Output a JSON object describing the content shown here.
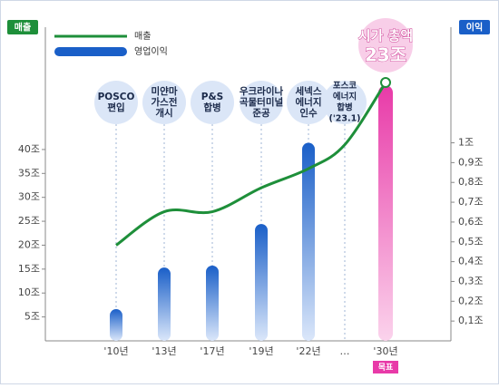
{
  "chart_data": {
    "type": "combo",
    "left_axis_title": "매출",
    "right_axis_title": "이익",
    "categories": [
      "'10년",
      "'13년",
      "'17년",
      "'19년",
      "'22년",
      "…",
      "'30년"
    ],
    "series": [
      {
        "name": "매출",
        "type": "line",
        "axis": "y",
        "color": "#1e8f3a",
        "values": [
          20,
          27,
          27,
          32,
          36,
          41,
          54
        ]
      },
      {
        "name": "영업이익",
        "type": "bar",
        "axis": "y2",
        "color": "#1a5fc8",
        "colors": [
          "#1a5fc8",
          "#1a5fc8",
          "#1a5fc8",
          "#1a5fc8",
          "#1a5fc8",
          null,
          "#e83aa8"
        ],
        "values": [
          0.16,
          0.37,
          0.38,
          0.59,
          1.0,
          null,
          1.29
        ]
      }
    ],
    "ylim": [
      0,
      65
    ],
    "yticks": [
      {
        "value": 5,
        "label": "5조"
      },
      {
        "value": 10,
        "label": "10조"
      },
      {
        "value": 15,
        "label": "15조"
      },
      {
        "value": 20,
        "label": "20조"
      },
      {
        "value": 25,
        "label": "25조"
      },
      {
        "value": 30,
        "label": "30조"
      },
      {
        "value": 35,
        "label": "35조"
      },
      {
        "value": 40,
        "label": "40조"
      }
    ],
    "y2lim": [
      0,
      1.57
    ],
    "y2ticks": [
      {
        "value": 0.1,
        "label": "0,1조"
      },
      {
        "value": 0.2,
        "label": "0,2조"
      },
      {
        "value": 0.3,
        "label": "0,3조"
      },
      {
        "value": 0.4,
        "label": "0,4조"
      },
      {
        "value": 0.5,
        "label": "0,5조"
      },
      {
        "value": 0.6,
        "label": "0,6조"
      },
      {
        "value": 0.7,
        "label": "0,7조"
      },
      {
        "value": 0.8,
        "label": "0,8조"
      },
      {
        "value": 0.9,
        "label": "0,9조"
      },
      {
        "value": 1,
        "label": "1조"
      }
    ],
    "milestones": [
      [
        "POSCO",
        "편입"
      ],
      [
        "미얀마",
        "가스전",
        "개시"
      ],
      [
        "P&S",
        "합병"
      ],
      [
        "우크라이나",
        "곡물터미널",
        "준공"
      ],
      [
        "세넥스",
        "에너지",
        "인수"
      ],
      [
        "포스코",
        "에너지",
        "합병",
        "('23.1)"
      ],
      null
    ],
    "target_note": [
      "시가 총액",
      "23조"
    ],
    "target_label": "목표"
  }
}
